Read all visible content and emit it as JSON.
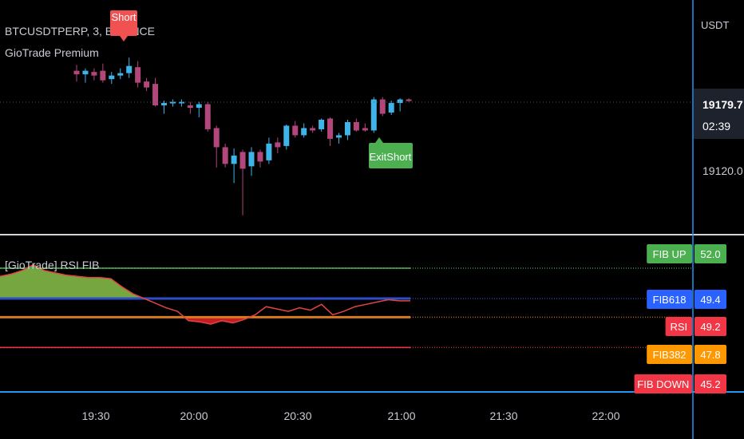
{
  "header": {
    "symbol_line": "BTCUSDTPERP, 3, BINANCE",
    "indicator": "GioTrade Premium"
  },
  "price_axis": {
    "currency": "USDT",
    "last_price": "19179.7",
    "countdown": "02:39",
    "tick": "19120.0"
  },
  "signals": {
    "short_label": "Short",
    "exit_label": "ExitShort"
  },
  "time_axis": {
    "labels": [
      "19:30",
      "20:00",
      "20:30",
      "21:00",
      "21:30",
      "22:00"
    ]
  },
  "rsi_panel": {
    "title": "[GioTrade] RSI FIB",
    "levels": [
      {
        "name": "FIB UP",
        "value": "52.0",
        "color": "#4caf50"
      },
      {
        "name": "FIB618",
        "value": "49.4",
        "color": "#2962ff"
      },
      {
        "name": "RSI",
        "value": "49.2",
        "color": "#f23645"
      },
      {
        "name": "FIB382",
        "value": "47.8",
        "color": "#ff9800"
      },
      {
        "name": "FIB DOWN",
        "value": "45.2",
        "color": "#f23645"
      }
    ]
  },
  "colors": {
    "bull": "#3fb4e8",
    "bear": "#b3467a",
    "fill_up": "#8bc34a",
    "fill_down": "#e8222d",
    "fib618": "#2f4fc8",
    "fib382": "#d77a1f",
    "fib_up": "#4caf50",
    "fib_down": "#f23645",
    "rsi": "#e2453f"
  },
  "chart_data": [
    {
      "type": "candlestick",
      "title": "BTCUSDTPERP, 3, BINANCE",
      "y_ticks": [
        19120.0
      ],
      "x_tick_labels": [
        "19:30",
        "20:00",
        "20:30",
        "21:00",
        "21:30",
        "22:00"
      ],
      "candles": [
        {
          "o": 19206,
          "h": 19211,
          "l": 19197,
          "c": 19203
        },
        {
          "o": 19203,
          "h": 19208,
          "l": 19196,
          "c": 19206
        },
        {
          "o": 19205,
          "h": 19208,
          "l": 19198,
          "c": 19202
        },
        {
          "o": 19206,
          "h": 19212,
          "l": 19196,
          "c": 19198
        },
        {
          "o": 19199,
          "h": 19205,
          "l": 19195,
          "c": 19202
        },
        {
          "o": 19202,
          "h": 19208,
          "l": 19199,
          "c": 19204
        },
        {
          "o": 19204,
          "h": 19217,
          "l": 19200,
          "c": 19210
        },
        {
          "o": 19209,
          "h": 19214,
          "l": 19192,
          "c": 19196
        },
        {
          "o": 19197,
          "h": 19200,
          "l": 19189,
          "c": 19192
        },
        {
          "o": 19195,
          "h": 19200,
          "l": 19176,
          "c": 19177
        },
        {
          "o": 19177,
          "h": 19181,
          "l": 19170,
          "c": 19179
        },
        {
          "o": 19179,
          "h": 19182,
          "l": 19176,
          "c": 19180
        },
        {
          "o": 19179,
          "h": 19182,
          "l": 19176,
          "c": 19180
        },
        {
          "o": 19177,
          "h": 19180,
          "l": 19170,
          "c": 19175
        },
        {
          "o": 19175,
          "h": 19180,
          "l": 19167,
          "c": 19178
        },
        {
          "o": 19178,
          "h": 19180,
          "l": 19155,
          "c": 19157
        },
        {
          "o": 19158,
          "h": 19160,
          "l": 19125,
          "c": 19142
        },
        {
          "o": 19142,
          "h": 19145,
          "l": 19125,
          "c": 19128
        },
        {
          "o": 19128,
          "h": 19141,
          "l": 19112,
          "c": 19135
        },
        {
          "o": 19138,
          "h": 19140,
          "l": 19085,
          "c": 19124
        },
        {
          "o": 19126,
          "h": 19142,
          "l": 19118,
          "c": 19138
        },
        {
          "o": 19138,
          "h": 19140,
          "l": 19125,
          "c": 19130
        },
        {
          "o": 19131,
          "h": 19150,
          "l": 19128,
          "c": 19145
        },
        {
          "o": 19146,
          "h": 19150,
          "l": 19137,
          "c": 19142
        },
        {
          "o": 19143,
          "h": 19161,
          "l": 19140,
          "c": 19160
        },
        {
          "o": 19160,
          "h": 19164,
          "l": 19150,
          "c": 19152
        },
        {
          "o": 19152,
          "h": 19162,
          "l": 19150,
          "c": 19158
        },
        {
          "o": 19158,
          "h": 19160,
          "l": 19154,
          "c": 19156
        },
        {
          "o": 19157,
          "h": 19166,
          "l": 19155,
          "c": 19165
        },
        {
          "o": 19166,
          "h": 19167,
          "l": 19143,
          "c": 19149
        },
        {
          "o": 19150,
          "h": 19154,
          "l": 19145,
          "c": 19152
        },
        {
          "o": 19152,
          "h": 19165,
          "l": 19148,
          "c": 19163
        },
        {
          "o": 19163,
          "h": 19166,
          "l": 19155,
          "c": 19156
        },
        {
          "o": 19158,
          "h": 19162,
          "l": 19155,
          "c": 19156
        },
        {
          "o": 19156,
          "h": 19184,
          "l": 19154,
          "c": 19182
        },
        {
          "o": 19182,
          "h": 19184,
          "l": 19168,
          "c": 19170
        },
        {
          "o": 19171,
          "h": 19181,
          "l": 19169,
          "c": 19179
        },
        {
          "o": 19179,
          "h": 19183,
          "l": 19172,
          "c": 19182
        },
        {
          "o": 19182,
          "h": 19183,
          "l": 19180,
          "c": 19181
        }
      ],
      "last_price": 19179.7,
      "signals": [
        {
          "label": "Short",
          "candle_index": 6
        },
        {
          "label": "ExitShort",
          "candle_index": 34
        }
      ]
    },
    {
      "type": "line",
      "title": "[GioTrade] RSI FIB",
      "series": [
        {
          "name": "RSI",
          "values": [
            51.3,
            51.5,
            51.8,
            52.3,
            51.8,
            51.6,
            51.4,
            51.3,
            51.2,
            51.2,
            51.1,
            50.4,
            49.8,
            49.4,
            49.0,
            48.6,
            48.3,
            47.5,
            47.4,
            47.2,
            47.5,
            47.3,
            47.6,
            48.0,
            48.7,
            48.5,
            48.3,
            48.6,
            48.4,
            48.9,
            48.0,
            48.3,
            48.7,
            48.9,
            49.1,
            49.3,
            49.2,
            49.2
          ]
        }
      ],
      "levels": [
        {
          "name": "FIB UP",
          "value": 52.0
        },
        {
          "name": "FIB618",
          "value": 49.4
        },
        {
          "name": "FIB382",
          "value": 47.8
        },
        {
          "name": "FIB DOWN",
          "value": 45.2
        }
      ]
    }
  ]
}
